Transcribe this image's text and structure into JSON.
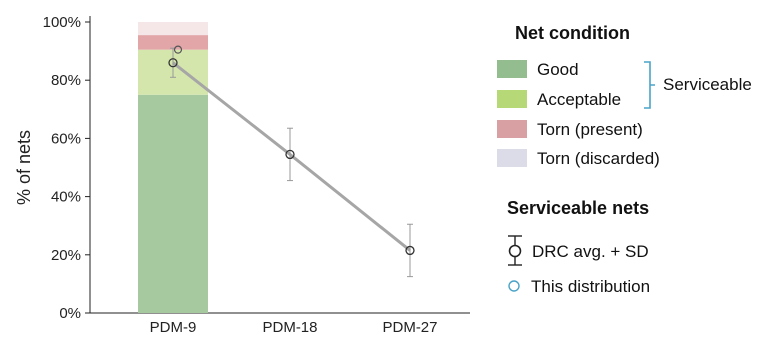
{
  "chart_data": {
    "type": "bar",
    "title": "",
    "xlabel": "",
    "ylabel": "% of nets",
    "ylim": [
      0,
      100
    ],
    "yticks": [
      0,
      20,
      40,
      60,
      80,
      100
    ],
    "ytick_labels": [
      "0%",
      "20%",
      "40%",
      "60%",
      "80%",
      "100%"
    ],
    "categories": [
      "PDM-9",
      "PDM-18",
      "PDM-27"
    ],
    "stacked_bar": {
      "category": "PDM-9",
      "segments": [
        {
          "name": "Good",
          "value": 75,
          "color": "#a7c9a0"
        },
        {
          "name": "Acceptable",
          "value": 15.5,
          "color": "#d5e6ad"
        },
        {
          "name": "Torn (present)",
          "value": 5,
          "color": "#e2a6a8"
        },
        {
          "name": "Torn (discarded)",
          "value": 4.5,
          "color": "#f5e7e8"
        }
      ]
    },
    "series": [
      {
        "name": "DRC avg. + SD",
        "values": [
          86,
          54.5,
          21.5
        ],
        "sd": [
          5,
          9,
          9
        ],
        "color": "#a6a6a6"
      }
    ],
    "this_distribution": {
      "category": "PDM-9",
      "value": 90.5,
      "color": "#4aa3c7"
    },
    "legend": {
      "net_condition_title": "Net condition",
      "net_condition_items": [
        "Good",
        "Acceptable",
        "Torn (present)",
        "Torn (discarded)"
      ],
      "legend_colors": [
        "#93bd8e",
        "#b7d877",
        "#d9a0a3",
        "#dcdce8"
      ],
      "bracket_label": "Serviceable",
      "serviceable_title": "Serviceable nets",
      "serviceable_items": [
        "DRC avg. + SD",
        "This distribution"
      ],
      "legend_position": "right"
    }
  }
}
